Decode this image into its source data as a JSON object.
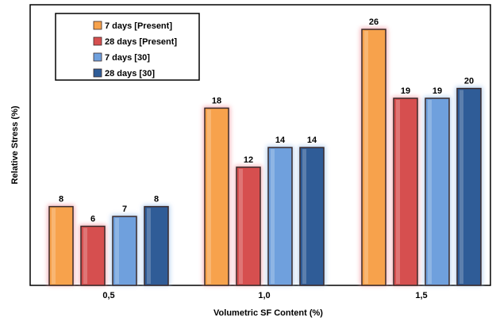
{
  "chart_data": {
    "type": "bar",
    "categories": [
      "0,5",
      "1,0",
      "1,5"
    ],
    "series": [
      {
        "name": "7 days [Present]",
        "values": [
          8,
          18,
          26
        ],
        "color": "#f7a24c",
        "glow": "#f4a0a8"
      },
      {
        "name": "28 days [Present]",
        "values": [
          6,
          12,
          19
        ],
        "color": "#d64f4f",
        "glow": "#f4a0a8"
      },
      {
        "name": "7 days [30]",
        "values": [
          7,
          14,
          19
        ],
        "color": "#6fa0dd",
        "glow": "#a8c8ee"
      },
      {
        "name": "28 days [30]",
        "values": [
          8,
          14,
          20
        ],
        "color": "#2f5c97",
        "glow": "#a8c8ee"
      }
    ],
    "xlabel": "Volumetric SF Content (%)",
    "ylabel": "Relative  Stress (%)",
    "ylim": [
      0,
      28.5
    ],
    "grid": false,
    "legend_position": "top-left"
  }
}
